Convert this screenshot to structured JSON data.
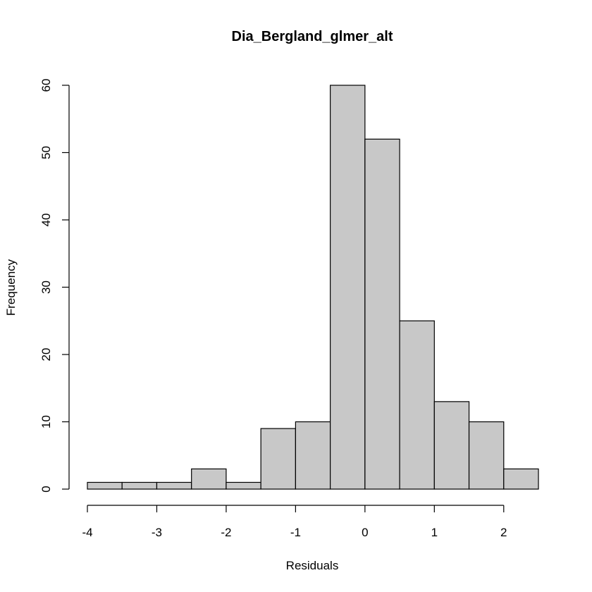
{
  "chart_data": {
    "type": "bar",
    "title": "Dia_Bergland_glmer_alt",
    "xlabel": "Residuals",
    "ylabel": "Frequency",
    "bin_edges": [
      -4,
      -3.5,
      -3,
      -2.5,
      -2,
      -1.5,
      -1,
      -0.5,
      0,
      0.5,
      1,
      1.5,
      2,
      2.5
    ],
    "values": [
      1,
      1,
      1,
      3,
      1,
      9,
      10,
      60,
      52,
      25,
      13,
      10,
      3
    ],
    "xlim": [
      -4,
      2.5
    ],
    "ylim": [
      0,
      60
    ],
    "x_ticks": [
      "-4",
      "-3",
      "-2",
      "-1",
      "0",
      "1",
      "2"
    ],
    "y_ticks": [
      "0",
      "10",
      "20",
      "30",
      "40",
      "50",
      "60"
    ],
    "bar_color": "#c8c8c8",
    "grid": false,
    "legend": "none"
  }
}
